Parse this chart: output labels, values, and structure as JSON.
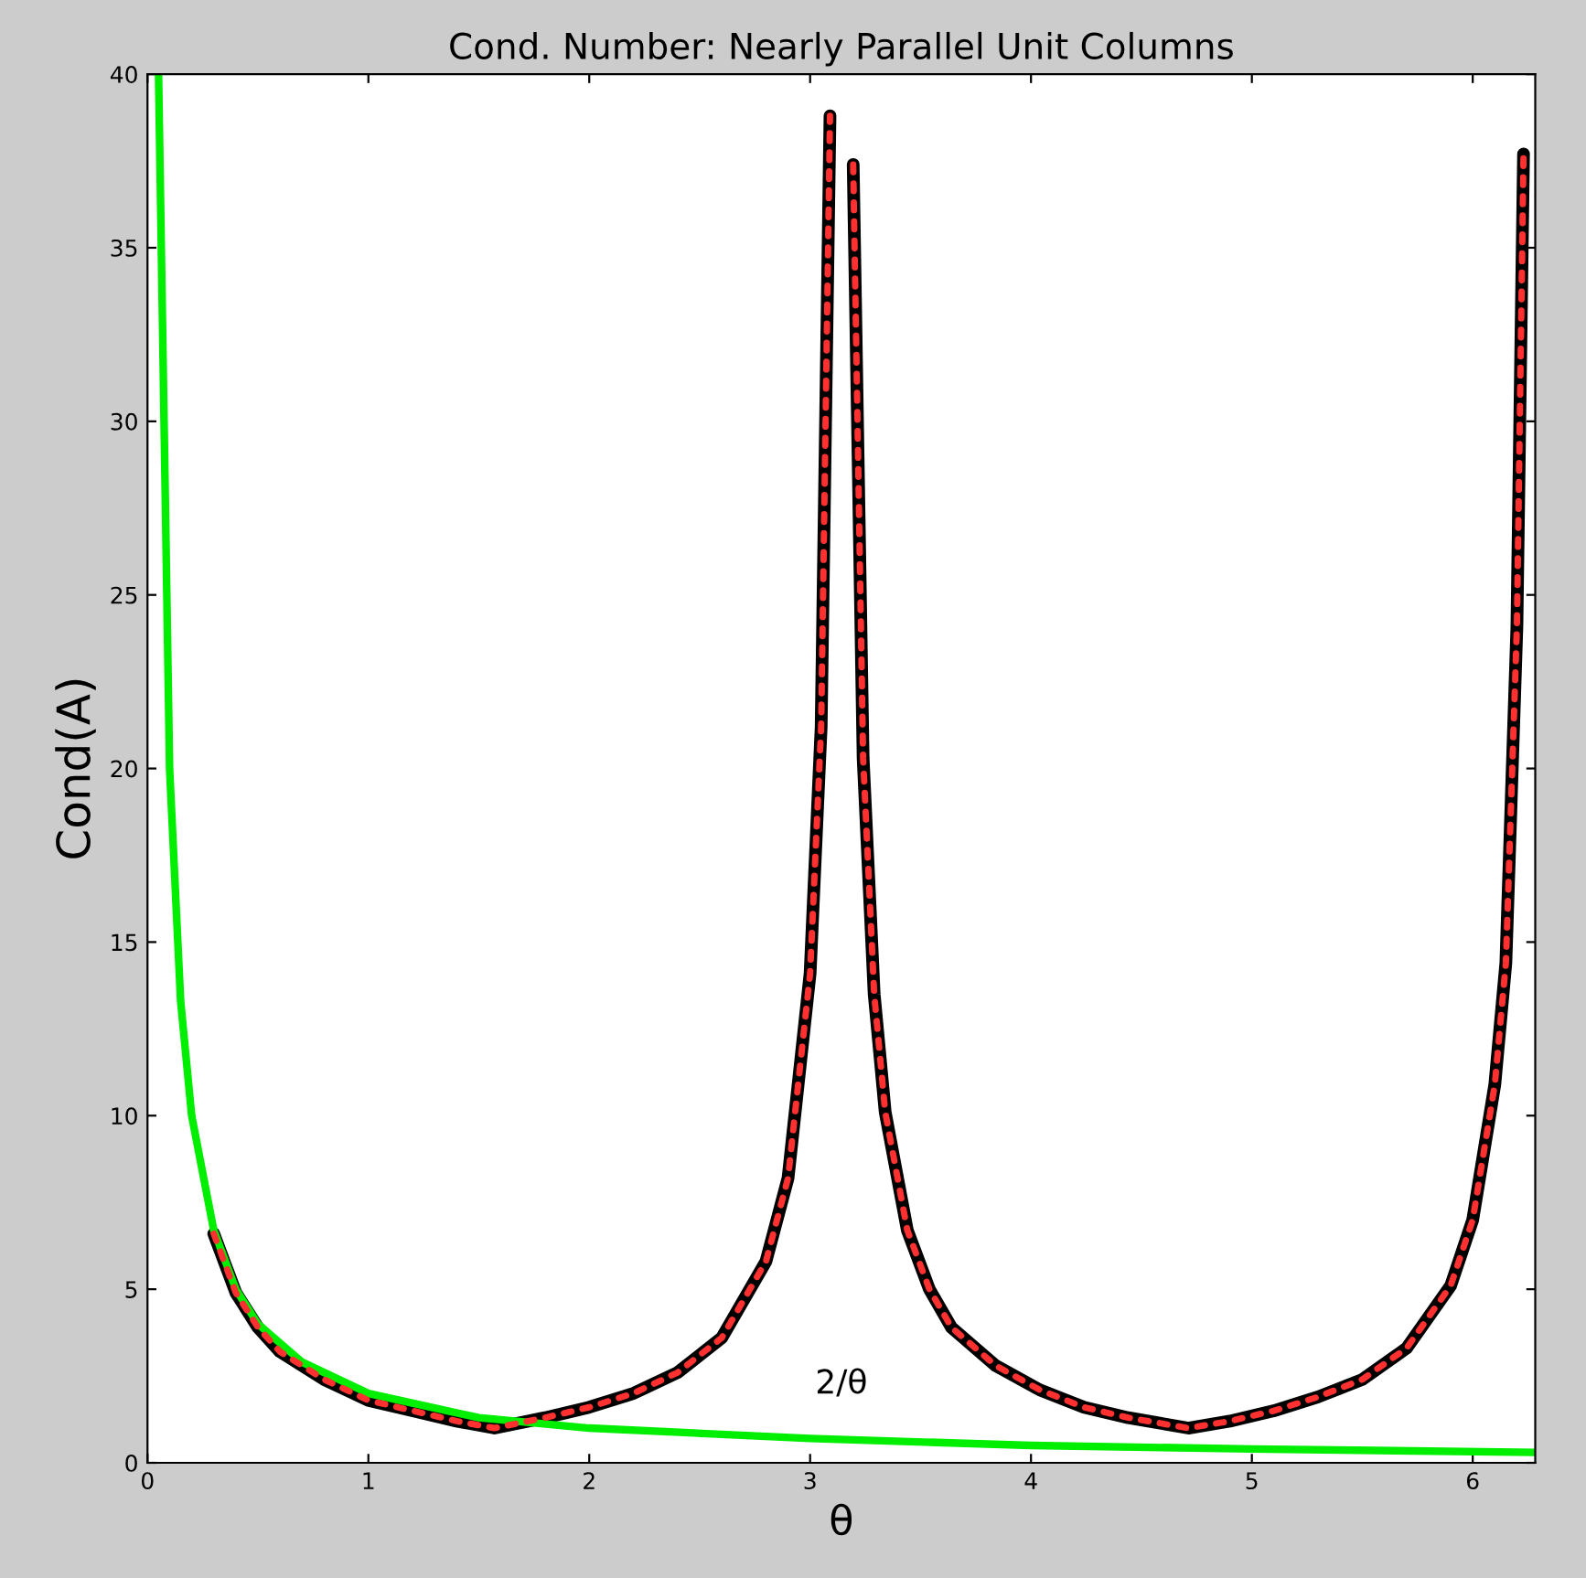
{
  "chart_data": {
    "type": "line",
    "title": "Cond. Number: Nearly Parallel Unit Columns",
    "xlabel": "θ",
    "ylabel": "Cond(A)",
    "xlim": [
      0,
      6.283
    ],
    "xticks": [
      0,
      1,
      2,
      3,
      4,
      5,
      6
    ],
    "ylim": [
      0,
      40
    ],
    "yticks": [
      0,
      5,
      10,
      15,
      20,
      25,
      30,
      35,
      40
    ],
    "grid": false,
    "legend": false,
    "series": [
      {
        "color": "#000000",
        "line_style": "solid",
        "x": [
          0.3,
          0.4,
          0.5,
          0.6,
          0.8,
          1.0,
          1.2,
          1.4,
          1.571,
          1.8,
          2.0,
          2.2,
          2.4,
          2.6,
          2.8,
          2.9,
          3.0,
          3.05,
          3.09,
          null,
          3.195,
          3.24,
          3.29,
          3.34,
          3.44,
          3.54,
          3.64,
          3.84,
          4.04,
          4.24,
          4.44,
          4.712,
          4.9,
          5.1,
          5.3,
          5.5,
          5.7,
          5.9,
          6.0,
          6.1,
          6.15,
          6.2,
          6.23
        ],
        "values": [
          6.6,
          4.9,
          3.9,
          3.2,
          2.4,
          1.8,
          1.5,
          1.2,
          1.0,
          1.3,
          1.6,
          2.0,
          2.6,
          3.6,
          5.8,
          8.2,
          14.1,
          21.2,
          38.8,
          null,
          37.4,
          20.3,
          13.5,
          10.1,
          6.7,
          5.0,
          3.9,
          2.8,
          2.1,
          1.6,
          1.3,
          1.0,
          1.2,
          1.5,
          1.9,
          2.4,
          3.3,
          5.1,
          7.0,
          10.9,
          14.4,
          24.1,
          37.7
        ]
      },
      {
        "color": "#ff3030",
        "line_style": "dashed",
        "x": [
          0.3,
          0.4,
          0.5,
          0.6,
          0.8,
          1.0,
          1.2,
          1.4,
          1.571,
          1.8,
          2.0,
          2.2,
          2.4,
          2.6,
          2.8,
          2.9,
          3.0,
          3.05,
          3.09,
          null,
          3.195,
          3.24,
          3.29,
          3.34,
          3.44,
          3.54,
          3.64,
          3.84,
          4.04,
          4.24,
          4.44,
          4.712,
          4.9,
          5.1,
          5.3,
          5.5,
          5.7,
          5.9,
          6.0,
          6.1,
          6.15,
          6.2,
          6.23
        ],
        "values": [
          6.6,
          4.9,
          3.9,
          3.2,
          2.4,
          1.8,
          1.5,
          1.2,
          1.0,
          1.3,
          1.6,
          2.0,
          2.6,
          3.6,
          5.8,
          8.2,
          14.1,
          21.2,
          38.8,
          null,
          37.4,
          20.3,
          13.5,
          10.1,
          6.7,
          5.0,
          3.9,
          2.8,
          2.1,
          1.6,
          1.3,
          1.0,
          1.2,
          1.5,
          1.9,
          2.4,
          3.3,
          5.1,
          7.0,
          10.9,
          14.4,
          24.1,
          37.7
        ]
      },
      {
        "color": "#00ee00",
        "line_style": "solid",
        "x": [
          0.05,
          0.1,
          0.15,
          0.2,
          0.3,
          0.4,
          0.5,
          0.7,
          1.0,
          1.5,
          2.0,
          3.0,
          4.0,
          5.0,
          6.283
        ],
        "values": [
          40,
          20,
          13.3,
          10,
          6.7,
          5,
          4,
          2.9,
          2,
          1.3,
          1,
          0.7,
          0.5,
          0.4,
          0.3
        ]
      }
    ],
    "annotations": [
      "2/θ"
    ]
  }
}
